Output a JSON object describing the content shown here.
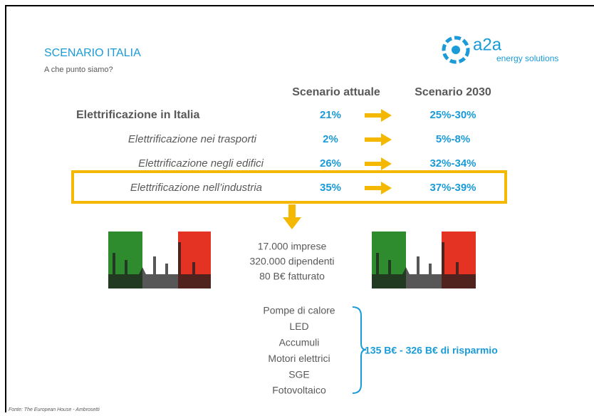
{
  "header": {
    "title": "SCENARIO ITALIA",
    "subtitle": "A che punto siamo?"
  },
  "logo": {
    "name": "a2a",
    "tagline": "energy solutions"
  },
  "table": {
    "columns": [
      "Scenario attuale",
      "Scenario 2030"
    ],
    "rows": [
      [
        "Elettrificazione in Italia",
        "21%",
        "25%-30%"
      ],
      [
        "Elettrificazione nei trasporti",
        "2%",
        "5%-8%"
      ],
      [
        "Elettrificazione negli edifici",
        "26%",
        "32%-34%"
      ],
      [
        "Elettrificazione nell’industria",
        "35%",
        "37%-39%"
      ]
    ]
  },
  "industry": [
    "17.000 imprese",
    "320.000 dipendenti",
    "80 B€ fatturato"
  ],
  "technologies": [
    "Pompe di calore",
    "LED",
    "Accumuli",
    "Motori elettrici",
    "SGE",
    "Fotovoltaico"
  ],
  "savings": "135 B€ - 326 B€ di risparmio",
  "source": "Fonte: The European House - Ambrosetti"
}
